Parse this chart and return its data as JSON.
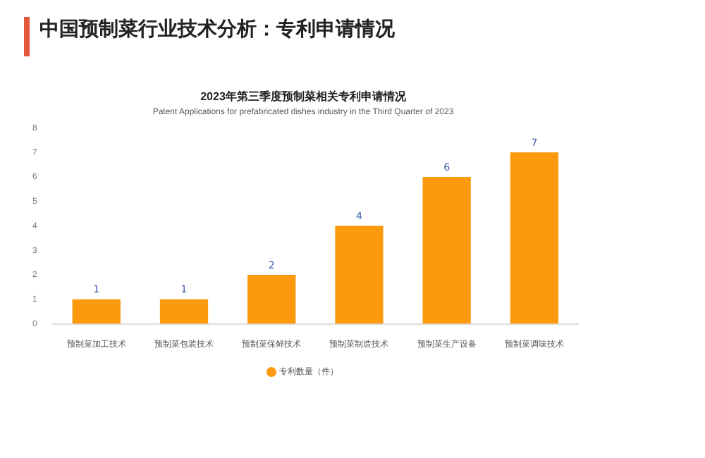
{
  "chart_data": {
    "type": "bar",
    "title": "2023年第三季度预制菜相关专利申请情况",
    "subtitle": "Patent Applications for prefabricated dishes industry in the Third Quarter of 2023",
    "annotations": [
      "中国预制菜行业技术分析：专利申请情况"
    ],
    "categories": [
      "预制菜加工技术",
      "预制菜包装技术",
      "预制菜保鲜技术",
      "预制菜制造技术",
      "预制菜生产设备",
      "预制菜调味技术"
    ],
    "series": [
      {
        "name": "专利数量（件）",
        "color": "#fb9a0e",
        "values": [
          1,
          1,
          2,
          4,
          6,
          7
        ]
      }
    ],
    "ylim": [
      0,
      8
    ],
    "yticks": [
      0,
      1,
      2,
      3,
      4,
      5,
      6,
      7,
      8
    ],
    "grid": false,
    "legend": "bottom",
    "data_labels": true
  }
}
